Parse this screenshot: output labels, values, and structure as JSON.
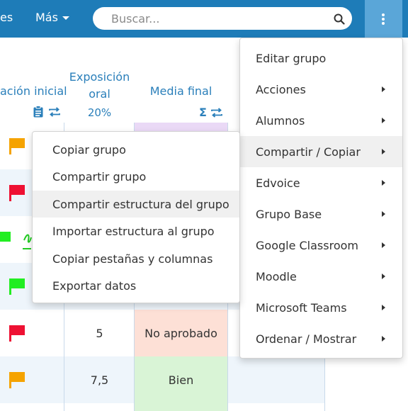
{
  "navbar": {
    "cut_link": "es",
    "more_label": "Más",
    "search_placeholder": "Buscar..."
  },
  "table": {
    "headers": {
      "initial_eval": "ación inicial",
      "oral_line1": "Exposición",
      "oral_line2": "oral",
      "oral_pct": "20%",
      "final": "Media final",
      "sigma": "Σ"
    },
    "rows": [
      {
        "flag": "orange",
        "oral": "",
        "final": ""
      },
      {
        "flag": "red",
        "oral": "",
        "final": ""
      },
      {
        "flag": "green",
        "oral": "",
        "final": ""
      },
      {
        "flag": "green",
        "oral": "",
        "final": ""
      },
      {
        "flag": "red",
        "oral": "5",
        "final": "No aprobado"
      },
      {
        "flag": "orange",
        "oral": "7,5",
        "final": "Bien"
      }
    ]
  },
  "colors": {
    "navbar": "#1e7cb8",
    "kebab": "#5aa6d8",
    "flag_orange": "#f5a300",
    "flag_red": "#ee1133",
    "flag_green": "#22ee22",
    "fail_bg": "#fde0d6",
    "pass_bg": "#d9f4d6",
    "final_col_bg": "#ead9f6"
  },
  "main_menu": {
    "items": [
      {
        "label": "Editar grupo",
        "submenu": false
      },
      {
        "label": "Acciones",
        "submenu": true
      },
      {
        "label": "Alumnos",
        "submenu": true
      },
      {
        "label": "Compartir / Copiar",
        "submenu": true,
        "active": true
      },
      {
        "label": "Edvoice",
        "submenu": true
      },
      {
        "label": "Grupo Base",
        "submenu": true
      },
      {
        "label": "Google Classroom",
        "submenu": true
      },
      {
        "label": "Moodle",
        "submenu": true
      },
      {
        "label": "Microsoft Teams",
        "submenu": true
      },
      {
        "label": "Ordenar / Mostrar",
        "submenu": true
      }
    ]
  },
  "sub_menu": {
    "items": [
      {
        "label": "Copiar grupo"
      },
      {
        "label": "Compartir grupo"
      },
      {
        "label": "Compartir estructura del grupo",
        "active": true
      },
      {
        "label": "Importar estructura al grupo"
      },
      {
        "label": "Copiar pestañas y columnas"
      },
      {
        "label": "Exportar datos"
      }
    ]
  }
}
